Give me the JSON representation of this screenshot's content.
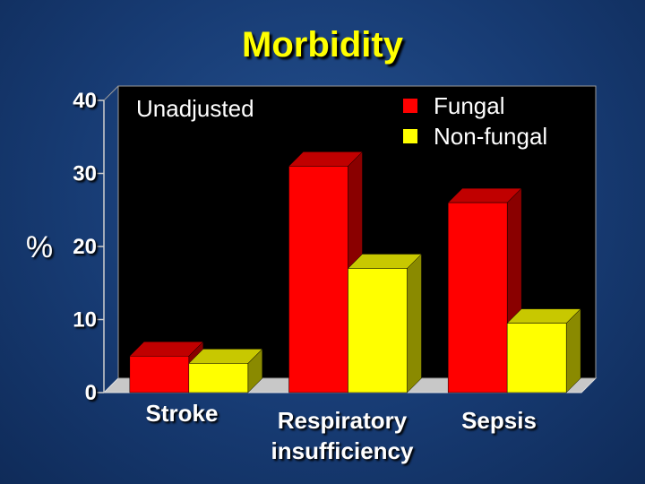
{
  "chart_data": {
    "type": "bar",
    "title": "Morbidity",
    "annotation": "Unadjusted",
    "ylabel": "%",
    "ylim": [
      0,
      40
    ],
    "yticks": [
      "0",
      "10",
      "20",
      "30",
      "40"
    ],
    "categories": [
      "Stroke",
      "Respiratory insufficiency",
      "Sepsis"
    ],
    "category_lines": [
      [
        "Stroke"
      ],
      [
        "Respiratory",
        "insufficiency"
      ],
      [
        "Sepsis"
      ]
    ],
    "series": [
      {
        "name": "Fungal",
        "color": "#ff0000",
        "values": [
          5,
          31,
          26
        ]
      },
      {
        "name": "Non-fungal",
        "color": "#ffff00",
        "values": [
          4,
          17,
          9.5
        ]
      }
    ],
    "legend_position": "top-right",
    "grid": false,
    "background": "#000000"
  }
}
